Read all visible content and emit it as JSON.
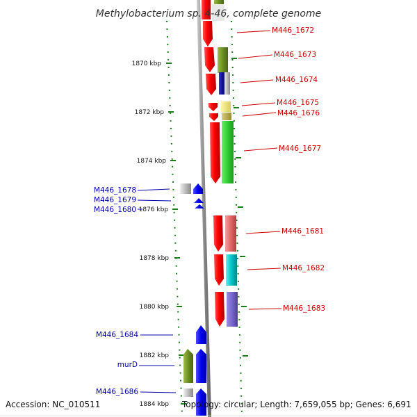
{
  "title": "Methylobacterium sp. 4-46, complete genome",
  "footer": {
    "accession": "Accession: NC_010511",
    "summary": "Topology: circular; Length: 7,659,055 bp; Genes: 6,691"
  },
  "colors": {
    "forward_label": "#cc0000",
    "reverse_label": "#0000aa",
    "tick": "#1a7f1a",
    "backbone": "#888888"
  },
  "scale": {
    "ticks": [
      "1870 kbp",
      "1872 kbp",
      "1874 kbp",
      "1876 kbp",
      "1878 kbp",
      "1880 kbp",
      "1882 kbp",
      "1884 kbp"
    ]
  },
  "genes_forward": [
    {
      "label": "M446_1672",
      "color": "#e00000"
    },
    {
      "label": "M446_1673",
      "color": "#6b8e23"
    },
    {
      "label": "M446_1674",
      "color": "#1a1a99"
    },
    {
      "label": "M446_1675",
      "color": "#ece27a"
    },
    {
      "label": "M446_1676",
      "color": "#b5a64a"
    },
    {
      "label": "M446_1677",
      "color": "#33cc33"
    },
    {
      "label": "M446_1681",
      "color": "#e06666"
    },
    {
      "label": "M446_1682",
      "color": "#00c4c4"
    },
    {
      "label": "M446_1683",
      "color": "#7766cc"
    }
  ],
  "genes_reverse": [
    {
      "label": "M446_1678",
      "color": "#999999"
    },
    {
      "label": "M446_1679",
      "color": "#0000ee"
    },
    {
      "label": "M446_1680",
      "color": "#0000ee"
    },
    {
      "label": "M446_1684",
      "color": "#0000ee"
    },
    {
      "label": "murD",
      "color": "#6b8e23"
    },
    {
      "label": "M446_1686",
      "color": "#aaaaaa"
    }
  ]
}
